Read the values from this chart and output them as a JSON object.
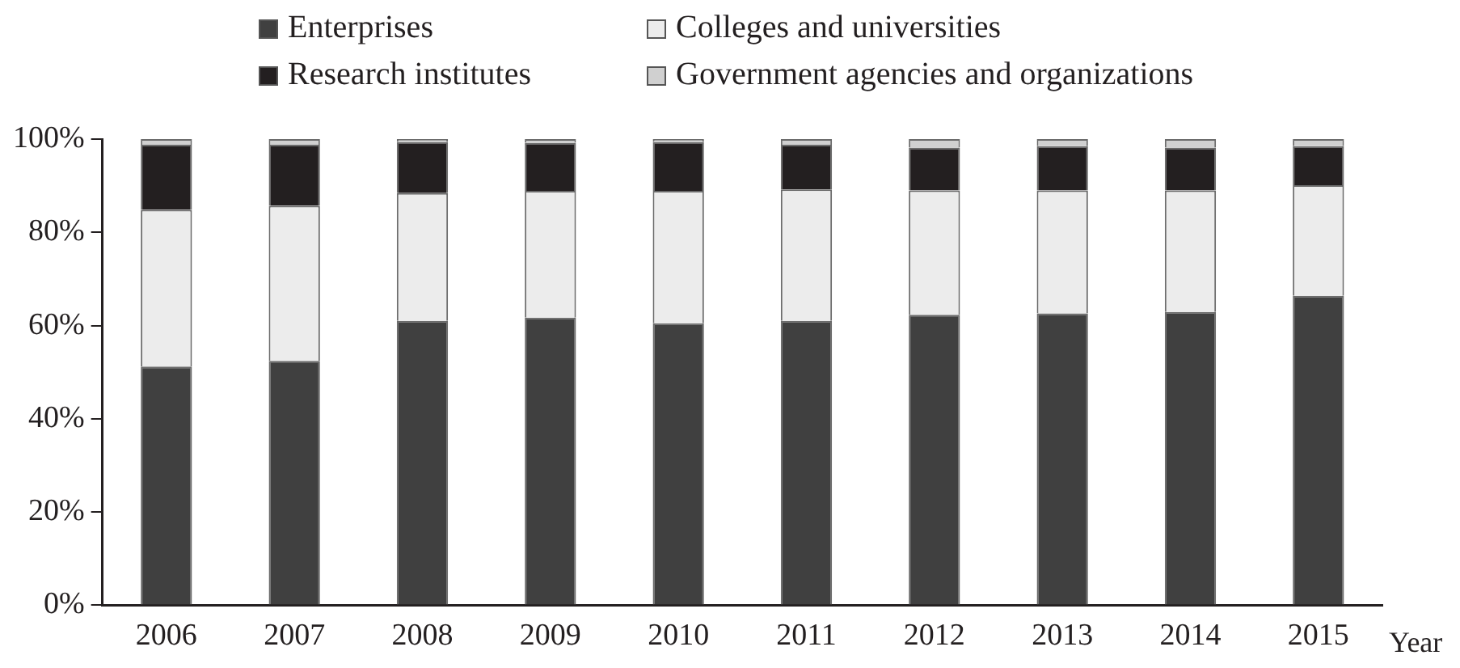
{
  "chart_data": {
    "type": "bar",
    "stacked": true,
    "xlabel": "Year",
    "legend": "top",
    "categories": [
      "2006",
      "2007",
      "2008",
      "2009",
      "2010",
      "2011",
      "2012",
      "2013",
      "2014",
      "2015"
    ],
    "ylim": [
      0,
      100
    ],
    "yticks": [
      {
        "value": 0,
        "label": "0%"
      },
      {
        "value": 20,
        "label": "20%"
      },
      {
        "value": 40,
        "label": "40%"
      },
      {
        "value": 60,
        "label": "60%"
      },
      {
        "value": 80,
        "label": "80%"
      },
      {
        "value": 100,
        "label": "100%"
      }
    ],
    "grid": false,
    "series": [
      {
        "name": "Enterprises",
        "color": "#404040",
        "values": [
          51.2,
          52.4,
          61.0,
          61.7,
          60.5,
          61.0,
          62.3,
          62.6,
          62.9,
          66.4
        ]
      },
      {
        "name": "Colleges and universities",
        "color": "#ececec",
        "values": [
          33.6,
          33.3,
          27.4,
          27.2,
          28.4,
          28.2,
          26.7,
          26.4,
          26.1,
          23.7
        ]
      },
      {
        "name": "Research institutes",
        "color": "#231f20",
        "values": [
          14.0,
          13.1,
          11.0,
          10.3,
          10.5,
          9.6,
          9.2,
          9.5,
          9.2,
          8.4
        ]
      },
      {
        "name": "Government agencies and organizations",
        "color": "#d0d0d0",
        "values": [
          1.2,
          1.2,
          0.6,
          0.8,
          0.6,
          1.2,
          1.8,
          1.5,
          1.8,
          1.5
        ]
      }
    ]
  }
}
